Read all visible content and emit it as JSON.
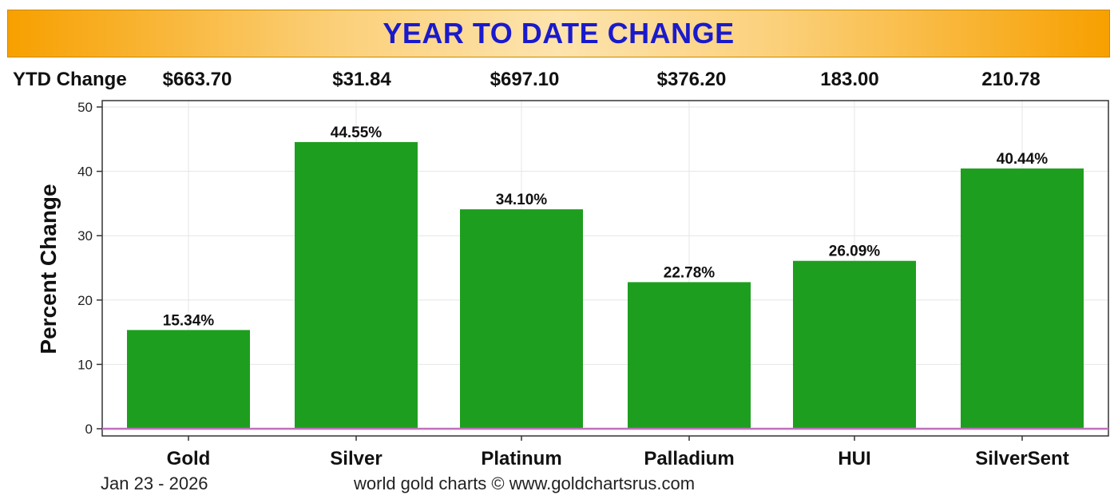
{
  "title": "YEAR TO DATE CHANGE",
  "ytd": {
    "label": "YTD Change",
    "values": [
      "$663.70",
      "$31.84",
      "$697.10",
      "$376.20",
      "183.00",
      "210.78"
    ]
  },
  "footer": {
    "date": "Jan 23 - 2026",
    "credit": "world gold charts © www.goldchartsrus.com"
  },
  "colors": {
    "bar": "#1e9e1e",
    "zero_line": "#c070c0",
    "grid": "#e6e6e6",
    "title_text": "#1a1acc"
  },
  "chart_data": {
    "type": "bar",
    "title": "YEAR TO DATE CHANGE",
    "categories": [
      "Gold",
      "Silver",
      "Platinum",
      "Palladium",
      "HUI",
      "SilverSent"
    ],
    "values": [
      15.34,
      44.55,
      34.1,
      22.78,
      26.09,
      40.44
    ],
    "data_labels": [
      "15.34%",
      "44.55%",
      "34.10%",
      "22.78%",
      "26.09%",
      "40.44%"
    ],
    "xlabel": "",
    "ylabel": "Percent Change",
    "ylim": [
      0,
      50
    ],
    "yticks": [
      0,
      10,
      20,
      30,
      40,
      50
    ],
    "grid": true
  }
}
